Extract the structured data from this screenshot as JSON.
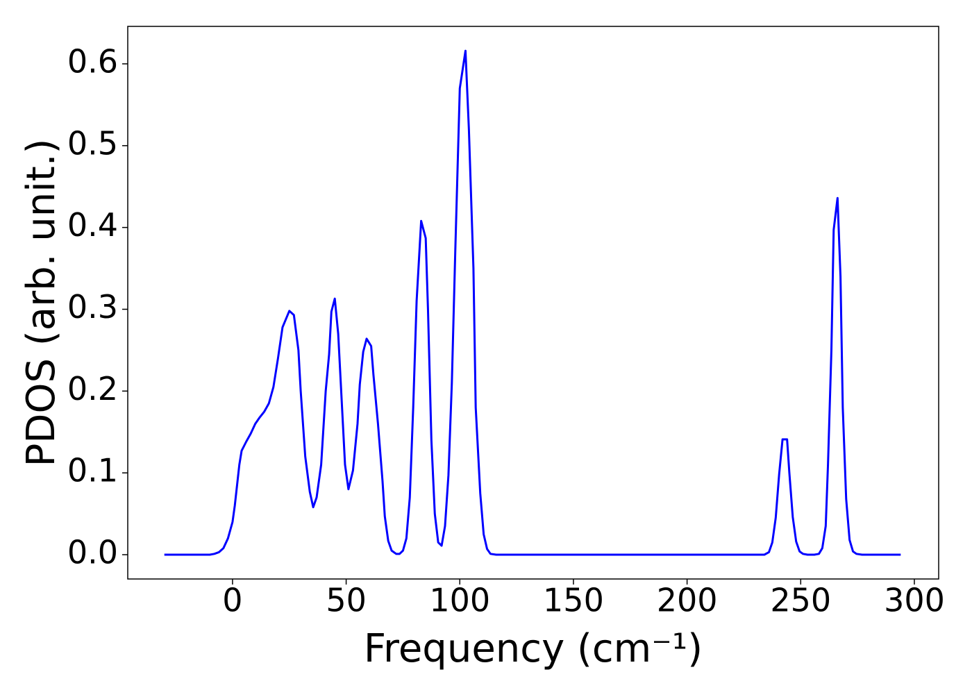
{
  "chart_data": {
    "type": "line",
    "xlabel": "Frequency (cm⁻¹)",
    "ylabel": "PDOS (arb. unit.)",
    "xlim": [
      -46.1,
      310.7
    ],
    "ylim": [
      -0.0297,
      0.6458
    ],
    "xticks": [
      0,
      50,
      100,
      150,
      200,
      250,
      300
    ],
    "yticks": [
      {
        "value": 0,
        "label": "0.0"
      },
      0.1,
      0.2,
      0.3,
      0.4,
      0.5,
      0.6
    ],
    "grid": false,
    "series": [
      {
        "color": "#0000ff",
        "x": [
          -30,
          -10,
          -8,
          -6,
          -4,
          -2,
          0,
          1,
          2,
          3,
          4,
          6,
          8,
          10,
          12,
          14,
          16,
          18,
          20,
          22,
          25,
          27,
          29,
          30,
          32,
          34,
          35.5,
          37,
          39,
          41,
          42.5,
          43.5,
          45,
          46.5,
          48,
          49.5,
          51,
          53,
          55,
          56,
          57.5,
          59,
          61,
          62,
          64,
          66,
          67,
          68.5,
          70,
          72,
          73.5,
          75,
          76.5,
          78,
          79.5,
          81,
          83,
          85,
          86,
          87.5,
          89,
          90.5,
          92,
          93.5,
          95,
          96.5,
          98,
          100,
          102.5,
          104,
          106,
          107,
          109,
          110.5,
          112,
          113.5,
          116,
          234,
          236,
          237.5,
          239,
          240.5,
          242,
          244,
          245,
          246.5,
          248,
          249.5,
          251,
          253,
          256,
          258,
          259.5,
          261,
          262,
          263.5,
          264.5,
          266.2,
          267.5,
          268.5,
          270,
          271.5,
          273,
          274.5,
          277,
          294
        ],
        "values": [
          0,
          0,
          0.001,
          0.003,
          0.008,
          0.02,
          0.04,
          0.06,
          0.085,
          0.11,
          0.127,
          0.138,
          0.148,
          0.16,
          0.168,
          0.175,
          0.185,
          0.205,
          0.24,
          0.278,
          0.298,
          0.293,
          0.25,
          0.2,
          0.12,
          0.077,
          0.058,
          0.07,
          0.11,
          0.2,
          0.245,
          0.297,
          0.313,
          0.27,
          0.19,
          0.11,
          0.08,
          0.103,
          0.16,
          0.208,
          0.248,
          0.264,
          0.255,
          0.22,
          0.16,
          0.09,
          0.047,
          0.017,
          0.005,
          0.001,
          0.001,
          0.005,
          0.02,
          0.07,
          0.18,
          0.31,
          0.408,
          0.387,
          0.3,
          0.14,
          0.05,
          0.015,
          0.011,
          0.035,
          0.097,
          0.21,
          0.37,
          0.57,
          0.616,
          0.52,
          0.35,
          0.18,
          0.075,
          0.025,
          0.007,
          0.001,
          0,
          0,
          0.003,
          0.015,
          0.045,
          0.098,
          0.141,
          0.141,
          0.1,
          0.046,
          0.016,
          0.004,
          0.001,
          0,
          0,
          0.001,
          0.008,
          0.035,
          0.11,
          0.25,
          0.397,
          0.436,
          0.34,
          0.18,
          0.068,
          0.018,
          0.004,
          0.001,
          0,
          0
        ]
      }
    ]
  }
}
